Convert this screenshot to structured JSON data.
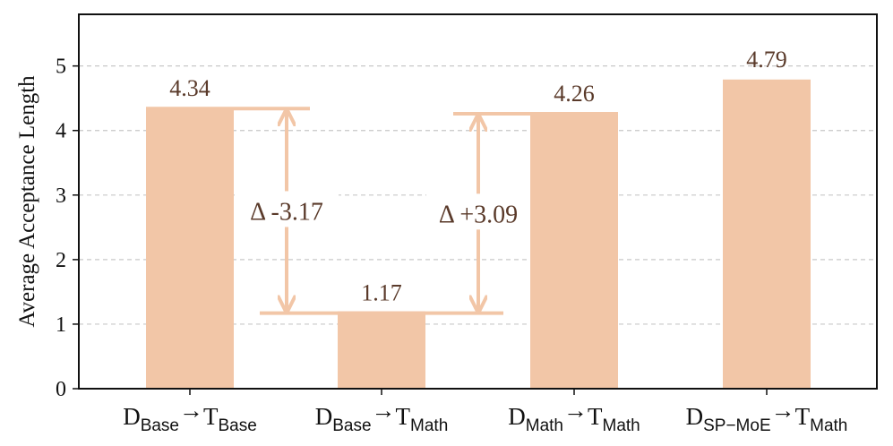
{
  "chart_data": {
    "type": "bar",
    "ylabel": "Average Acceptance Length",
    "ylim": [
      0,
      5.8
    ],
    "yticks": [
      0,
      1,
      2,
      3,
      4,
      5
    ],
    "grid": "horizontal-dashed",
    "bar_color": "#f2c6a7",
    "arrow_color": "#f2c6a7",
    "label_color": "#5a3a2a",
    "categories": [
      {
        "d": "D",
        "d_sub": "Base",
        "arrow": "→",
        "t": "T",
        "t_sub": "Base"
      },
      {
        "d": "D",
        "d_sub": "Base",
        "arrow": "→",
        "t": "T",
        "t_sub": "Math"
      },
      {
        "d": "D",
        "d_sub": "Math",
        "arrow": "→",
        "t": "T",
        "t_sub": "Math"
      },
      {
        "d": "D",
        "d_sub": "SP−MoE",
        "arrow": "→",
        "t": "T",
        "t_sub": "Math"
      }
    ],
    "values": [
      4.34,
      1.17,
      4.26,
      4.79
    ],
    "value_labels": [
      "4.34",
      "1.17",
      "4.26",
      "4.79"
    ],
    "annotations": [
      {
        "from_index": 0,
        "to_index": 1,
        "text": "Δ -3.17"
      },
      {
        "from_index": 1,
        "to_index": 2,
        "text": "Δ +3.09"
      }
    ]
  }
}
